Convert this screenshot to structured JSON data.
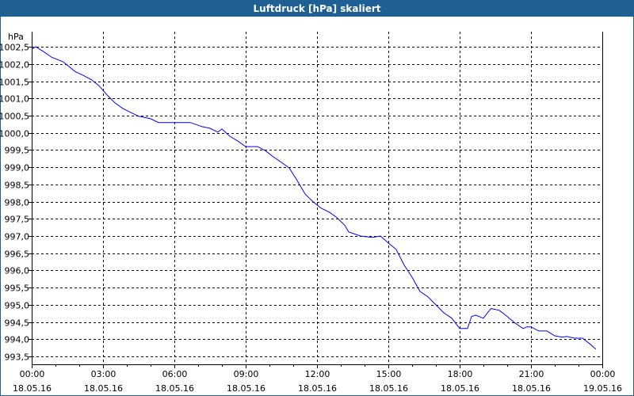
{
  "window": {
    "title": "Luftdruck [hPa] skaliert",
    "accent": "#1e5f94"
  },
  "chart_data": {
    "type": "line",
    "title": "Luftdruck [hPa] skaliert",
    "ylabel": "hPa",
    "xlabel": "",
    "ylim": [
      993.27,
      1002.94
    ],
    "xlim": [
      0,
      24
    ],
    "grid": true,
    "yticks": [
      1002.5,
      1002.0,
      1001.5,
      1001.0,
      1000.5,
      1000.0,
      999.5,
      999.0,
      998.5,
      998.0,
      997.5,
      997.0,
      996.5,
      996.0,
      995.5,
      995.0,
      994.5,
      994.0,
      993.5
    ],
    "ytick_labels": [
      "1002,5",
      "1002,0",
      "1001,5",
      "1001,0",
      "1000,5",
      "1000,0",
      "999,5",
      "999,0",
      "998,5",
      "998,0",
      "997,5",
      "997,0",
      "996,5",
      "996,0",
      "995,5",
      "995,0",
      "994,5",
      "994,0",
      "993,5"
    ],
    "xticks": [
      0,
      3,
      6,
      9,
      12,
      15,
      18,
      21,
      24
    ],
    "xtick_labels": [
      [
        "00:00",
        "18.05.16"
      ],
      [
        "03:00",
        "18.05.16"
      ],
      [
        "06:00",
        "18.05.16"
      ],
      [
        "09:00",
        "18.05.16"
      ],
      [
        "12:00",
        "18.05.16"
      ],
      [
        "15:00",
        "18.05.16"
      ],
      [
        "18:00",
        "18.05.16"
      ],
      [
        "21:00",
        "18.05.16"
      ],
      [
        "00:00",
        "19.05.16"
      ]
    ],
    "series": [
      {
        "name": "Luftdruck",
        "color": "#0000ff",
        "x": [
          0,
          0.17,
          0.5,
          0.83,
          1.33,
          1.83,
          2.17,
          2.5,
          2.83,
          3.17,
          3.5,
          3.83,
          4.17,
          4.5,
          5.0,
          5.33,
          5.83,
          6.67,
          7.17,
          7.5,
          7.83,
          8.0,
          8.33,
          8.67,
          9.0,
          9.5,
          9.83,
          10.17,
          10.5,
          10.83,
          11.17,
          11.5,
          11.83,
          12.17,
          12.5,
          12.83,
          13.17,
          13.33,
          13.83,
          14.33,
          14.67,
          15.0,
          15.33,
          15.67,
          16.0,
          16.33,
          16.67,
          17.0,
          17.33,
          17.67,
          18.0,
          18.33,
          18.5,
          18.67,
          19.0,
          19.17,
          19.33,
          19.67,
          20.0,
          20.33,
          20.67,
          20.83,
          21.0,
          21.33,
          21.67,
          22.0,
          22.33,
          22.5,
          22.83,
          23.17,
          23.5,
          23.73
        ],
        "y": [
          1002.43,
          1002.5,
          1002.36,
          1002.2,
          1002.06,
          1001.78,
          1001.67,
          1001.55,
          1001.37,
          1001.1,
          1000.87,
          1000.71,
          1000.59,
          1000.48,
          1000.41,
          1000.3,
          1000.3,
          1000.3,
          1000.18,
          1000.13,
          1000.02,
          1000.11,
          999.9,
          999.76,
          999.6,
          999.6,
          999.48,
          999.3,
          999.14,
          998.98,
          998.61,
          998.22,
          998.0,
          997.81,
          997.7,
          997.54,
          997.31,
          997.12,
          997.0,
          996.96,
          997.0,
          996.8,
          996.61,
          996.15,
          995.8,
          995.39,
          995.23,
          995.0,
          994.77,
          994.61,
          994.31,
          994.31,
          994.66,
          994.7,
          994.61,
          994.77,
          994.89,
          994.84,
          994.66,
          994.47,
          994.31,
          994.36,
          994.36,
          994.24,
          994.24,
          994.1,
          994.06,
          994.08,
          994.03,
          994.03,
          993.85,
          993.71
        ]
      }
    ]
  }
}
